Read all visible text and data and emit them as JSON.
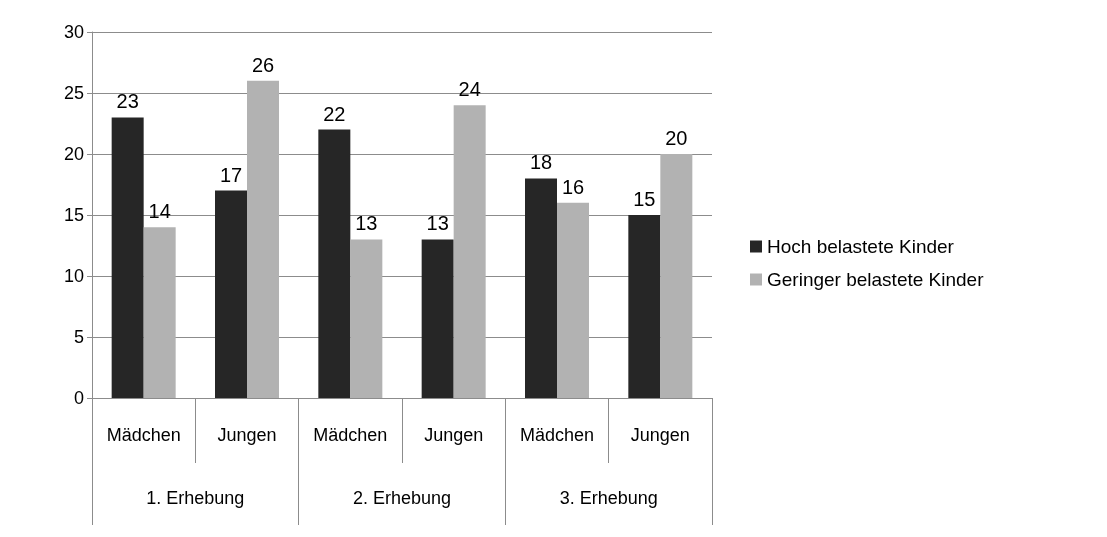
{
  "chart_data": {
    "type": "bar",
    "categories": [
      "Mädchen",
      "Jungen",
      "Mädchen",
      "Jungen",
      "Mädchen",
      "Jungen"
    ],
    "series": [
      {
        "name": "Hoch belastete Kinder",
        "color": "#262626",
        "values": [
          23,
          17,
          22,
          13,
          18,
          15
        ]
      },
      {
        "name": "Geringer belastete Kinder",
        "color": "#b2b2b2",
        "values": [
          14,
          26,
          13,
          24,
          16,
          20
        ]
      }
    ],
    "annotations": [
      "1. Erhebung",
      "2. Erhebung",
      "3. Erhebung"
    ],
    "ylim": [
      0,
      30
    ],
    "yticks": [
      0,
      5,
      10,
      15,
      20,
      25,
      30
    ],
    "grid": "y",
    "legend": "right",
    "data_labels": true
  }
}
